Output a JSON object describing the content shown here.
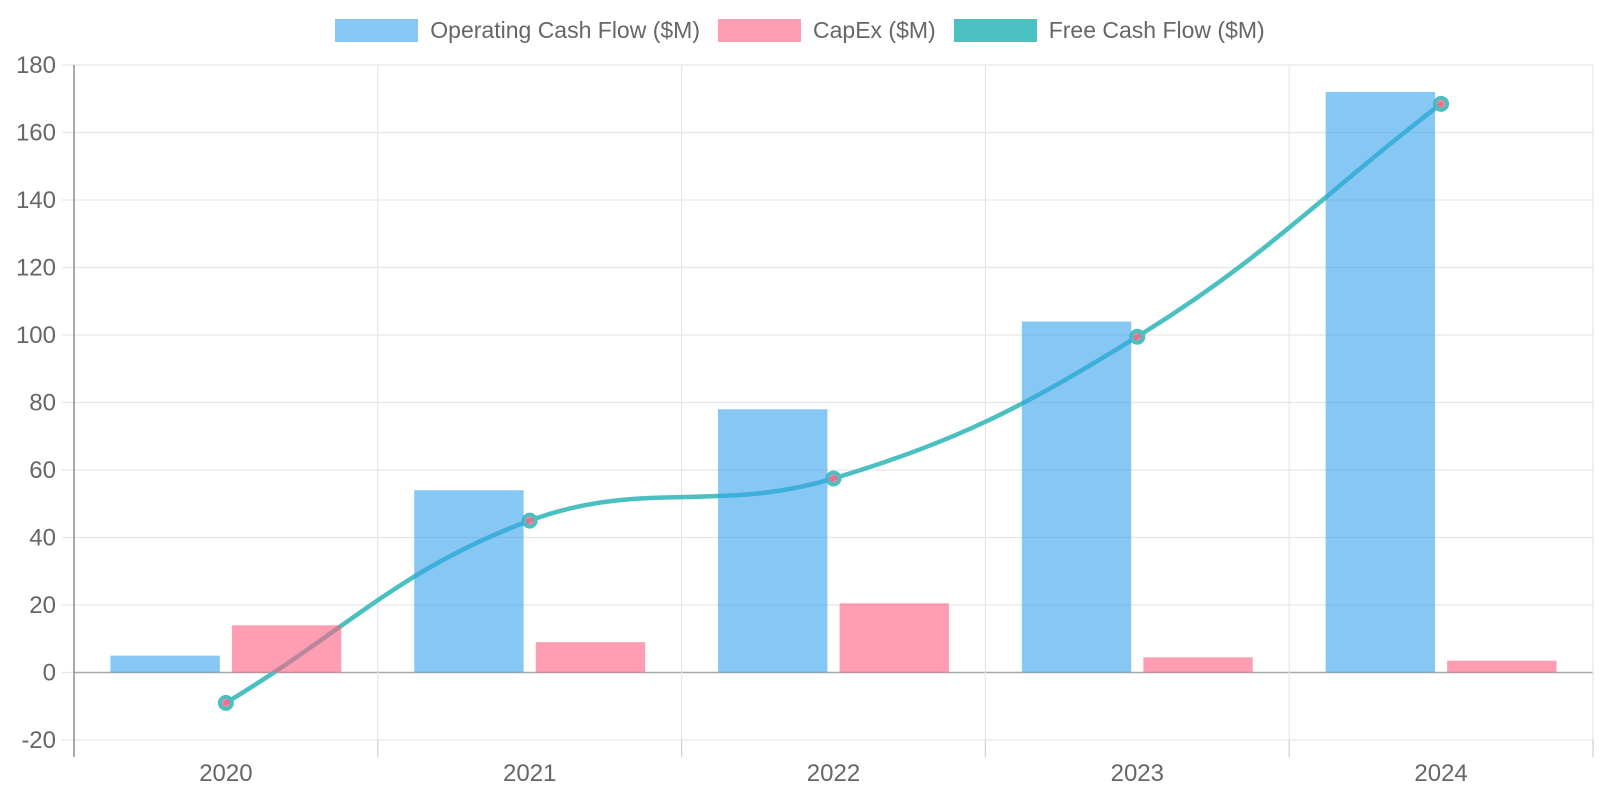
{
  "chart_data": {
    "type": "combo-bar-line",
    "title": "",
    "xlabel": "",
    "ylabel": "",
    "categories": [
      "2020",
      "2021",
      "2022",
      "2023",
      "2024"
    ],
    "series": [
      {
        "name": "Operating Cash Flow ($M)",
        "type": "bar",
        "values": [
          5,
          54,
          78,
          104,
          172
        ],
        "color": "rgba(54,162,235,0.6)",
        "legend_color": "rgba(54,162,235,0.6)"
      },
      {
        "name": "CapEx ($M)",
        "type": "bar",
        "values": [
          14,
          9,
          20.5,
          4.5,
          3.5
        ],
        "color": "rgba(255,99,132,0.62)",
        "legend_color": "rgba(255,99,132,0.62)"
      },
      {
        "name": "Free Cash Flow ($M)",
        "type": "line",
        "values": [
          -9,
          45,
          57.5,
          99.5,
          168.5
        ],
        "color": "rgb(75,192,192)",
        "point_fill": "rgba(255,99,132,0.8)",
        "legend_color": "rgb(75,192,192)",
        "line_width": 4.5,
        "point_radius": 6,
        "point_border_width": 4,
        "tension": 0.4
      }
    ],
    "ylim": [
      -20,
      180
    ],
    "ytick_step": 20,
    "yticks": [
      "-20",
      "0",
      "20",
      "40",
      "60",
      "80",
      "100",
      "120",
      "140",
      "160",
      "180"
    ],
    "grid": true,
    "legend_position": "top",
    "style": {
      "background": "#ffffff",
      "grid_color": "#e6e6e6",
      "zero_line_color": "#a8a8a8",
      "axis_line_color": "#949494",
      "tick_mark_color": "#cfcfcf",
      "tick_label_color": "#666666",
      "tick_font_size": 24,
      "legend_label_color": "#666666"
    }
  }
}
